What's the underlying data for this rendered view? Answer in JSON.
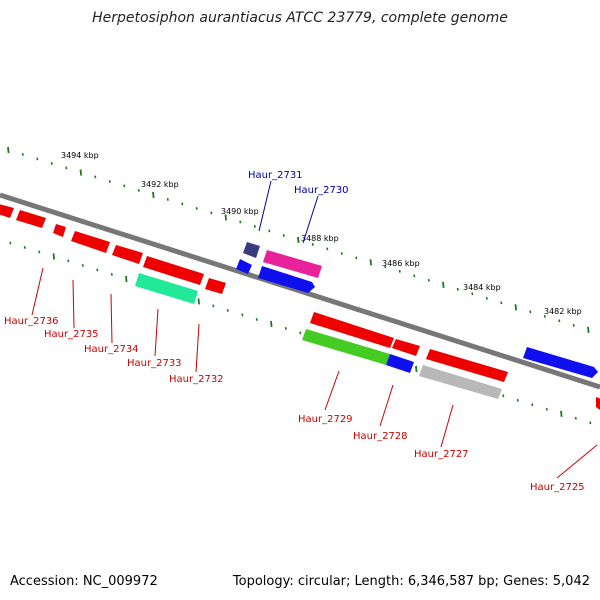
{
  "title": "Herpetosiphon aurantiacus ATCC 23779, complete genome",
  "footer": {
    "accession": "Accession: NC_009972",
    "topology": "Topology: circular; Length: 6,346,587 bp; Genes: 5,042"
  },
  "colors": {
    "backbone": "#777777",
    "tick": "#1a7a1a",
    "label_forward": "#0000aa",
    "label_reverse": "#cc0000"
  },
  "scale_labels": [
    "3494 kbp",
    "3492 kbp",
    "3490 kbp",
    "3488 kbp",
    "3486 kbp",
    "3484 kbp",
    "3482 kbp"
  ],
  "genes_forward": [
    {
      "name": "Haur_2731",
      "color": "#3a3a80"
    },
    {
      "name": "Haur_2730",
      "color": "#e8229a"
    }
  ],
  "genes_reverse": [
    {
      "name": "Haur_2736",
      "color": "#ee0000"
    },
    {
      "name": "Haur_2735",
      "color": "#ee0000"
    },
    {
      "name": "Haur_2734",
      "color": "#ee0000"
    },
    {
      "name": "Haur_2733",
      "color": "#22e89a"
    },
    {
      "name": "Haur_2732",
      "color": "#ee0000"
    },
    {
      "name": "Haur_2729",
      "color": "#44cc22"
    },
    {
      "name": "Haur_2728",
      "color": "#1010ee"
    },
    {
      "name": "Haur_2727",
      "color": "#b8b8b8"
    },
    {
      "name": "Haur_2725",
      "color": "#ee0000"
    }
  ]
}
